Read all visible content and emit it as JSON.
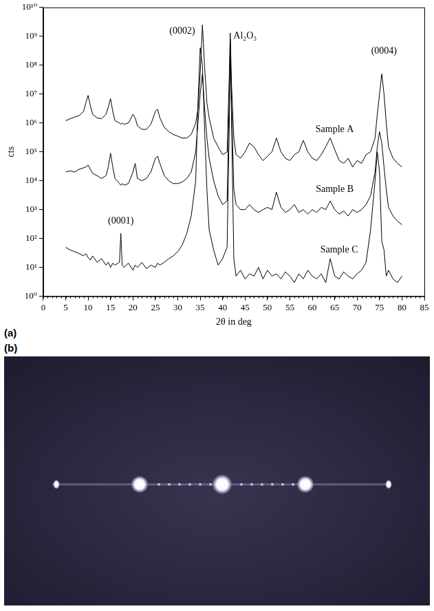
{
  "chart_data": {
    "type": "line",
    "panel_label": "(a)",
    "x_label": "2θ in deg",
    "y_label": "cts",
    "log": "y",
    "grid": false,
    "tick_labels": true,
    "xlim": [
      0,
      85
    ],
    "xticks": [
      0,
      5,
      10,
      15,
      20,
      25,
      30,
      35,
      40,
      45,
      50,
      55,
      60,
      65,
      70,
      75,
      80,
      85
    ],
    "ylim": [
      1,
      10000000000
    ],
    "yticks": [
      {
        "value": 1,
        "label": "10⁰"
      },
      {
        "value": 10,
        "label": "10¹"
      },
      {
        "value": 100,
        "label": "10²"
      },
      {
        "value": 1000,
        "label": "10³"
      },
      {
        "value": 10000,
        "label": "10⁴"
      },
      {
        "value": 100000,
        "label": "10⁵"
      },
      {
        "value": 1000000,
        "label": "10⁶"
      },
      {
        "value": 10000000,
        "label": "10⁷"
      },
      {
        "value": 100000000,
        "label": "10⁸"
      },
      {
        "value": 1000000000,
        "label": "10⁹"
      },
      {
        "value": 10000000000,
        "label": "10¹⁰"
      }
    ],
    "x": [
      5,
      6,
      7,
      8,
      9,
      9.5,
      10,
      10.5,
      11,
      12,
      13,
      14,
      14.5,
      15,
      15.5,
      16,
      17,
      17.3,
      17.6,
      18,
      19,
      20,
      20.5,
      21,
      22,
      23,
      24,
      25,
      25.5,
      26,
      27,
      28,
      29,
      30,
      31,
      32,
      33,
      34,
      34.5,
      35,
      35.5,
      36,
      36.5,
      37,
      38,
      39,
      40,
      41,
      41.5,
      41.7,
      42,
      42.5,
      43,
      44,
      45,
      46,
      47,
      48,
      49,
      50,
      51,
      52,
      53,
      54,
      55,
      56,
      57,
      58,
      59,
      60,
      61,
      62,
      63,
      64,
      65,
      66,
      67,
      68,
      69,
      70,
      71,
      72,
      73,
      74,
      74.5,
      75,
      75.5,
      76,
      76.5,
      77,
      78,
      79,
      80
    ],
    "series": [
      {
        "name": "Sample A",
        "color": "#000000",
        "name_x": 65,
        "name_y": 600000,
        "values": [
          1200000,
          1400000,
          1600000,
          1800000,
          2500000,
          5000000,
          9000000,
          4000000,
          2000000,
          1500000,
          1400000,
          2000000,
          3500000,
          7000000,
          2500000,
          1200000,
          1000000,
          900000,
          1000000,
          900000,
          1000000,
          2000000,
          1500000,
          800000,
          600000,
          600000,
          900000,
          2500000,
          3000000,
          1500000,
          700000,
          500000,
          400000,
          350000,
          300000,
          300000,
          400000,
          1000000,
          3000000,
          50000000,
          2500000000,
          80000000,
          5000000,
          1500000,
          300000,
          150000,
          80000,
          100000,
          50000000,
          1300000000,
          20000000,
          300000,
          80000,
          60000,
          100000,
          200000,
          150000,
          80000,
          50000,
          70000,
          100000,
          300000,
          100000,
          60000,
          50000,
          80000,
          100000,
          250000,
          100000,
          60000,
          50000,
          80000,
          150000,
          300000,
          120000,
          50000,
          40000,
          60000,
          30000,
          50000,
          40000,
          80000,
          100000,
          300000,
          2000000,
          10000000,
          50000000,
          10000000,
          1000000,
          150000,
          60000,
          40000,
          30000
        ]
      },
      {
        "name": "Sample B",
        "color": "#000000",
        "name_x": 65,
        "name_y": 5000,
        "values": [
          20000,
          22000,
          20000,
          25000,
          28000,
          30000,
          35000,
          25000,
          18000,
          15000,
          12000,
          15000,
          30000,
          90000,
          30000,
          12000,
          8000,
          7000,
          8000,
          7000,
          8000,
          20000,
          40000,
          12000,
          10000,
          12000,
          20000,
          60000,
          70000,
          40000,
          15000,
          10000,
          8000,
          8000,
          9000,
          12000,
          20000,
          100000,
          1000000,
          10000000,
          50000000,
          3000000,
          300000,
          60000,
          10000,
          3000,
          1500,
          2000,
          10000000,
          600000000,
          5000000,
          5000,
          1500,
          1000,
          1000,
          1500,
          1000,
          800,
          1000,
          1200,
          1000,
          4000,
          1200,
          800,
          1000,
          1500,
          800,
          1000,
          700,
          1000,
          800,
          1200,
          1000,
          2000,
          1000,
          700,
          900,
          600,
          1000,
          800,
          1000,
          1500,
          3000,
          20000,
          150000,
          500000,
          200000,
          30000,
          5000,
          1200,
          600,
          400,
          300
        ]
      },
      {
        "name": "Sample C",
        "color": "#000000",
        "name_x": 66,
        "name_y": 40,
        "values": [
          50,
          40,
          35,
          30,
          25,
          30,
          22,
          18,
          25,
          15,
          20,
          12,
          15,
          10,
          14,
          12,
          15,
          150,
          12,
          10,
          14,
          8,
          12,
          10,
          15,
          9,
          12,
          10,
          14,
          12,
          15,
          20,
          25,
          35,
          60,
          150,
          600,
          10000,
          5000000,
          400000000,
          100000000,
          500000,
          5000,
          200,
          40,
          12,
          20,
          50,
          1000000,
          800000000,
          1000000,
          20,
          5,
          8,
          4,
          6,
          5,
          10,
          4,
          8,
          5,
          6,
          4,
          7,
          5,
          3,
          6,
          4,
          8,
          5,
          4,
          6,
          3,
          20,
          5,
          4,
          7,
          5,
          4,
          6,
          8,
          15,
          200,
          10000,
          100000,
          20000,
          80,
          40,
          5,
          8,
          4,
          3,
          5
        ]
      }
    ],
    "annotations": [
      {
        "text": "(0002)",
        "x": 31,
        "y": 1500000000
      },
      {
        "text": "Al₂O₃",
        "x": 45,
        "y": 1000000000
      },
      {
        "text": "(0004)",
        "x": 76,
        "y": 300000000
      },
      {
        "text": "(0001)",
        "x": 17.3,
        "y": 400
      }
    ]
  },
  "image_panel": {
    "panel_label": "(b)"
  }
}
